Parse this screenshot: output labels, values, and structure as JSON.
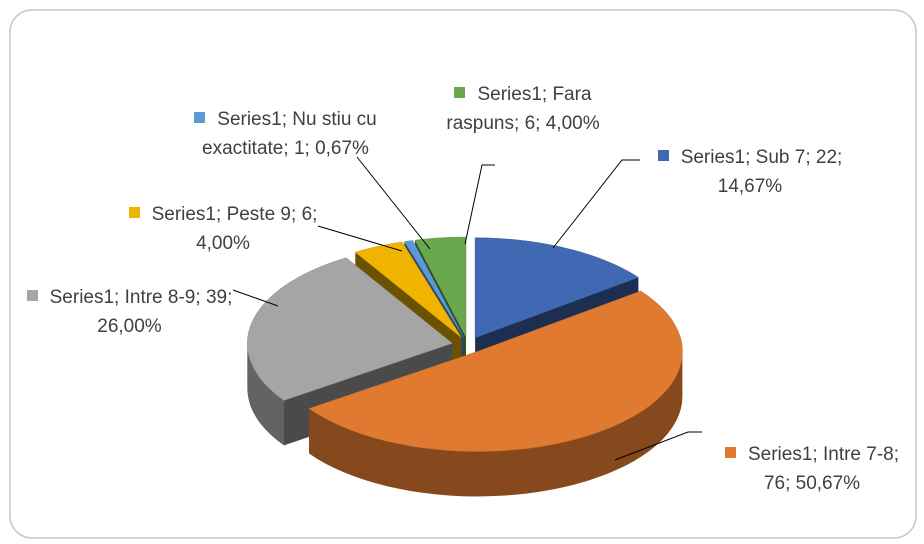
{
  "chart_data": {
    "type": "pie3d",
    "series_name": "Series1",
    "label_separator": "; ",
    "categories": [
      "Sub 7",
      "Intre 7-8",
      "Intre 8-9",
      "Peste 9",
      "Nu stiu cu exactitate",
      "Fara raspuns"
    ],
    "values": [
      22,
      76,
      39,
      6,
      1,
      6
    ],
    "percentage_labels": [
      "14,67%",
      "50,67%",
      "26,00%",
      "4,00%",
      "0,67%",
      "4,00%"
    ],
    "colors": [
      "#4169b3",
      "#e07a30",
      "#a5a5a5",
      "#f0b400",
      "#5b9bd5",
      "#6aa84f"
    ]
  }
}
